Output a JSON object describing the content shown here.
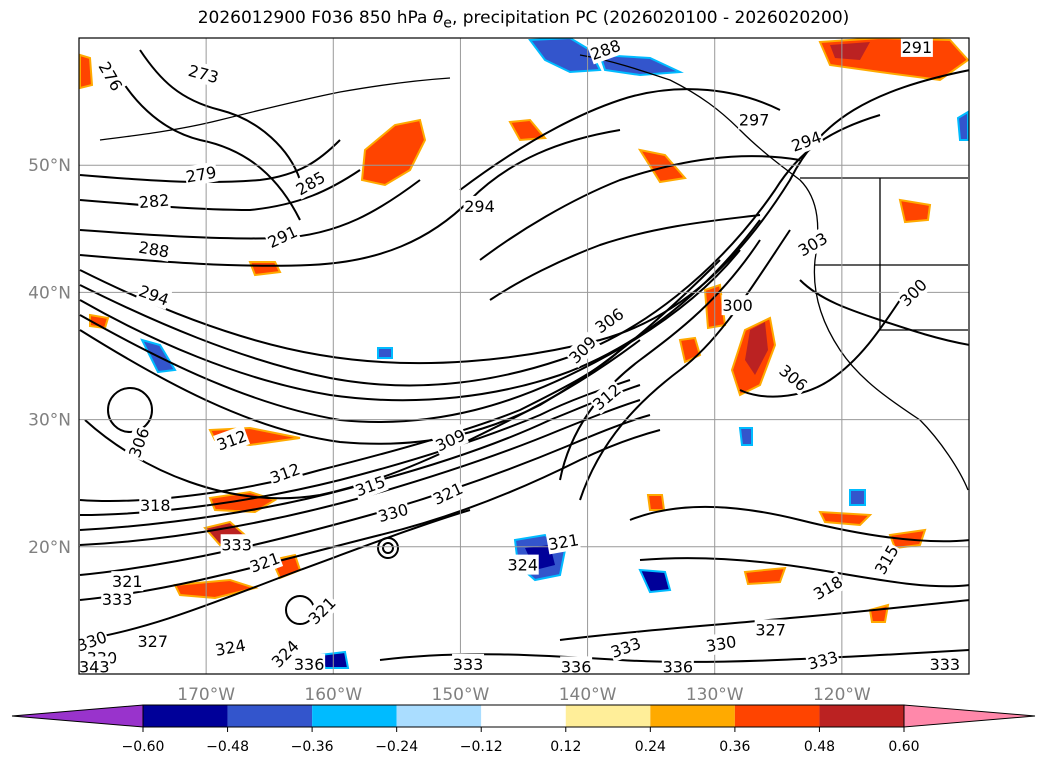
{
  "title": {
    "prefix": "2026012900 F036 850 hPa ",
    "theta": "θ",
    "sub": "e",
    "suffix": ", precipitation PC (2026020100 - 2026020200)"
  },
  "map": {
    "lon_range": [
      -180,
      -110
    ],
    "lat_range": [
      10,
      60
    ],
    "lat_ticks": [
      {
        "v": 20,
        "label": "20°N"
      },
      {
        "v": 30,
        "label": "30°N"
      },
      {
        "v": 40,
        "label": "40°N"
      },
      {
        "v": 50,
        "label": "50°N"
      }
    ],
    "lon_ticks": [
      {
        "v": -170,
        "label": "170°W"
      },
      {
        "v": -160,
        "label": "160°W"
      },
      {
        "v": -150,
        "label": "150°W"
      },
      {
        "v": -140,
        "label": "140°W"
      },
      {
        "v": -130,
        "label": "130°W"
      },
      {
        "v": -120,
        "label": "120°W"
      }
    ],
    "gridlines": true,
    "contour_labels": [
      {
        "t": "276",
        "lon": -177.5,
        "lat": 57.0,
        "rot": 60
      },
      {
        "t": "273",
        "lon": -170.2,
        "lat": 57.2,
        "rot": 15
      },
      {
        "t": "279",
        "lon": -170.4,
        "lat": 49.3,
        "rot": -10
      },
      {
        "t": "282",
        "lon": -174.1,
        "lat": 47.2,
        "rot": -5
      },
      {
        "t": "285",
        "lon": -161.8,
        "lat": 48.6,
        "rot": -30
      },
      {
        "t": "288",
        "lon": -174.1,
        "lat": 43.4,
        "rot": 10
      },
      {
        "t": "291",
        "lon": -164.0,
        "lat": 44.4,
        "rot": -25
      },
      {
        "t": "294",
        "lon": -174.1,
        "lat": 39.8,
        "rot": 20
      },
      {
        "t": "294",
        "lon": -148.5,
        "lat": 46.8,
        "rot": 0
      },
      {
        "t": "288",
        "lon": -138.6,
        "lat": 59.1,
        "rot": -20
      },
      {
        "t": "291",
        "lon": -114.1,
        "lat": 59.3,
        "rot": 0
      },
      {
        "t": "297",
        "lon": -126.9,
        "lat": 53.6,
        "rot": 0
      },
      {
        "t": "294",
        "lon": -122.8,
        "lat": 51.9,
        "rot": -20
      },
      {
        "t": "303",
        "lon": -122.3,
        "lat": 43.8,
        "rot": -30
      },
      {
        "t": "300",
        "lon": -128.2,
        "lat": 39.0,
        "rot": 0
      },
      {
        "t": "300",
        "lon": -114.4,
        "lat": 40.0,
        "rot": -45
      },
      {
        "t": "306",
        "lon": -138.3,
        "lat": 37.8,
        "rot": -35
      },
      {
        "t": "309",
        "lon": -140.4,
        "lat": 35.5,
        "rot": -45
      },
      {
        "t": "306",
        "lon": -123.8,
        "lat": 33.3,
        "rot": 40
      },
      {
        "t": "306",
        "lon": -175.3,
        "lat": 28.2,
        "rot": -70
      },
      {
        "t": "312",
        "lon": -168.0,
        "lat": 28.4,
        "rot": -20
      },
      {
        "t": "312",
        "lon": -163.8,
        "lat": 25.8,
        "rot": -20
      },
      {
        "t": "309",
        "lon": -150.8,
        "lat": 28.4,
        "rot": -25
      },
      {
        "t": "315",
        "lon": -157.1,
        "lat": 24.8,
        "rot": -20
      },
      {
        "t": "312",
        "lon": -138.5,
        "lat": 31.8,
        "rot": -40
      },
      {
        "t": "318",
        "lon": -174.0,
        "lat": 23.3,
        "rot": 0
      },
      {
        "t": "321",
        "lon": -151.0,
        "lat": 24.2,
        "rot": -25
      },
      {
        "t": "330",
        "lon": -155.3,
        "lat": 22.7,
        "rot": -15
      },
      {
        "t": "333",
        "lon": -167.6,
        "lat": 20.2,
        "rot": 0
      },
      {
        "t": "321",
        "lon": -165.4,
        "lat": 18.8,
        "rot": -20
      },
      {
        "t": "321",
        "lon": -141.9,
        "lat": 20.4,
        "rot": -10
      },
      {
        "t": "324",
        "lon": -145.1,
        "lat": 18.6,
        "rot": 0
      },
      {
        "t": "321",
        "lon": -176.2,
        "lat": 17.3,
        "rot": 0
      },
      {
        "t": "333",
        "lon": -177.0,
        "lat": 15.9,
        "rot": 0
      },
      {
        "t": "321",
        "lon": -160.9,
        "lat": 15.0,
        "rot": -45
      },
      {
        "t": "327",
        "lon": -174.2,
        "lat": 12.6,
        "rot": 0
      },
      {
        "t": "324",
        "lon": -168.1,
        "lat": 12.1,
        "rot": -10
      },
      {
        "t": "324",
        "lon": -163.8,
        "lat": 11.6,
        "rot": -45
      },
      {
        "t": "330",
        "lon": -179.0,
        "lat": 12.6,
        "rot": -20
      },
      {
        "t": "330",
        "lon": -178.2,
        "lat": 11.3,
        "rot": 0
      },
      {
        "t": "343",
        "lon": -178.8,
        "lat": 10.6,
        "rot": 0
      },
      {
        "t": "336",
        "lon": -161.9,
        "lat": 10.8,
        "rot": 0
      },
      {
        "t": "333",
        "lon": -149.4,
        "lat": 10.8,
        "rot": 0
      },
      {
        "t": "336",
        "lon": -140.9,
        "lat": 10.6,
        "rot": 0
      },
      {
        "t": "333",
        "lon": -137.0,
        "lat": 12.1,
        "rot": -20
      },
      {
        "t": "336",
        "lon": -132.9,
        "lat": 10.6,
        "rot": 0
      },
      {
        "t": "330",
        "lon": -129.5,
        "lat": 12.4,
        "rot": -10
      },
      {
        "t": "327",
        "lon": -125.6,
        "lat": 13.5,
        "rot": 0
      },
      {
        "t": "318",
        "lon": -121.1,
        "lat": 16.8,
        "rot": -30
      },
      {
        "t": "315",
        "lon": -116.5,
        "lat": 19.0,
        "rot": -60
      },
      {
        "t": "333",
        "lon": -121.5,
        "lat": 11.1,
        "rot": -15
      },
      {
        "t": "333",
        "lon": -111.9,
        "lat": 10.8,
        "rot": 0
      }
    ]
  },
  "colorbar": {
    "ticks": [
      "−0.60",
      "−0.48",
      "−0.36",
      "−0.24",
      "−0.12",
      "0.12",
      "0.24",
      "0.36",
      "0.48",
      "0.60"
    ],
    "colors": [
      "#9933cc",
      "#000099",
      "#3355cc",
      "#00bbff",
      "#aaddff",
      "#ffffff",
      "#ffee99",
      "#ffaa00",
      "#ff4400",
      "#bb2222",
      "#ff88aa"
    ]
  }
}
